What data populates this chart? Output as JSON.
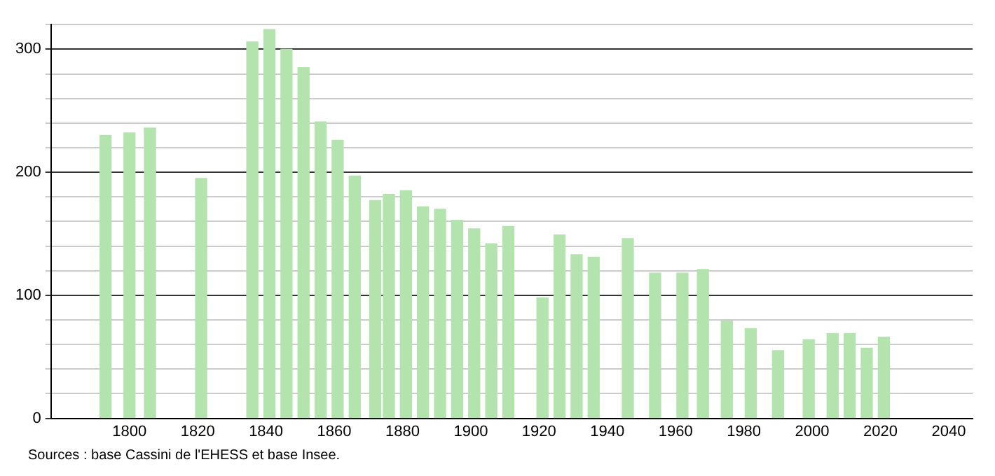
{
  "chart_data": {
    "type": "bar",
    "x": [
      1793,
      1800,
      1806,
      1821,
      1836,
      1841,
      1846,
      1851,
      1856,
      1861,
      1866,
      1872,
      1876,
      1881,
      1886,
      1891,
      1896,
      1901,
      1906,
      1911,
      1921,
      1926,
      1931,
      1936,
      1946,
      1954,
      1962,
      1968,
      1975,
      1982,
      1990,
      1999,
      2006,
      2011,
      2016,
      2021
    ],
    "values": [
      230,
      232,
      236,
      195,
      306,
      316,
      300,
      285,
      241,
      226,
      197,
      177,
      182,
      185,
      172,
      170,
      161,
      154,
      142,
      156,
      98,
      149,
      133,
      131,
      146,
      118,
      118,
      121,
      79,
      73,
      55,
      64,
      69,
      69,
      57,
      66
    ],
    "color": "#b3e4ae",
    "xlim": [
      1777,
      2047
    ],
    "xticks": [
      1800,
      1820,
      1840,
      1860,
      1880,
      1900,
      1920,
      1940,
      1960,
      1980,
      2000,
      2020,
      2040
    ],
    "ylim": [
      0,
      320
    ],
    "yticks": [
      0,
      {
        "value": 20,
        "label": null
      },
      {
        "value": 40,
        "label": null
      },
      {
        "value": 60,
        "label": null
      },
      {
        "value": 80,
        "label": null
      },
      100,
      {
        "value": 120,
        "label": null
      },
      {
        "value": 140,
        "label": null
      },
      {
        "value": 160,
        "label": null
      },
      {
        "value": 180,
        "label": null
      },
      200,
      {
        "value": 220,
        "label": null
      },
      {
        "value": 240,
        "label": null
      },
      {
        "value": 260,
        "label": null
      },
      {
        "value": 280,
        "label": null
      },
      300,
      {
        "value": 320,
        "label": null
      }
    ],
    "grid": "y",
    "legend": false,
    "annotations": [
      "Sources : base Cassini de l'EHESS et base Insee."
    ]
  }
}
